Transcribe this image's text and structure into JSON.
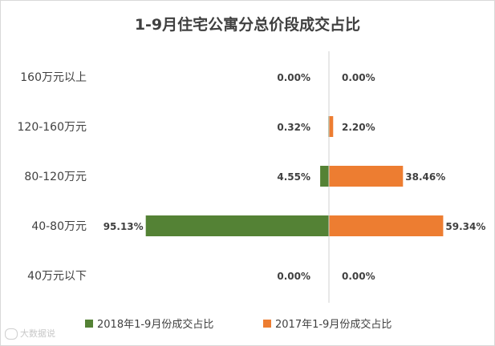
{
  "chart_data": {
    "type": "bar",
    "orientation": "horizontal-diverging",
    "title": "1-9月住宅公寓分总价段成交占比",
    "categories": [
      "160万元以上",
      "120-160万元",
      "80-120万元",
      "40-80万元",
      "40万元以下"
    ],
    "series": [
      {
        "name": "2018年1-9月份成交占比",
        "values": [
          0.0,
          0.32,
          4.55,
          95.13,
          0.0
        ],
        "labels": [
          "0.00%",
          "0.32%",
          "4.55%",
          "95.13%",
          "0.00%"
        ],
        "color": "#548235",
        "direction": "left"
      },
      {
        "name": "2017年1-9月份成交占比",
        "values": [
          0.0,
          2.2,
          38.46,
          59.34,
          0.0
        ],
        "labels": [
          "0.00%",
          "2.20%",
          "38.46%",
          "59.34%",
          "0.00%"
        ],
        "color": "#ed7d31",
        "direction": "right"
      }
    ],
    "legend_position": "bottom",
    "grid": false,
    "unit": "%"
  },
  "watermark": "大数据说"
}
